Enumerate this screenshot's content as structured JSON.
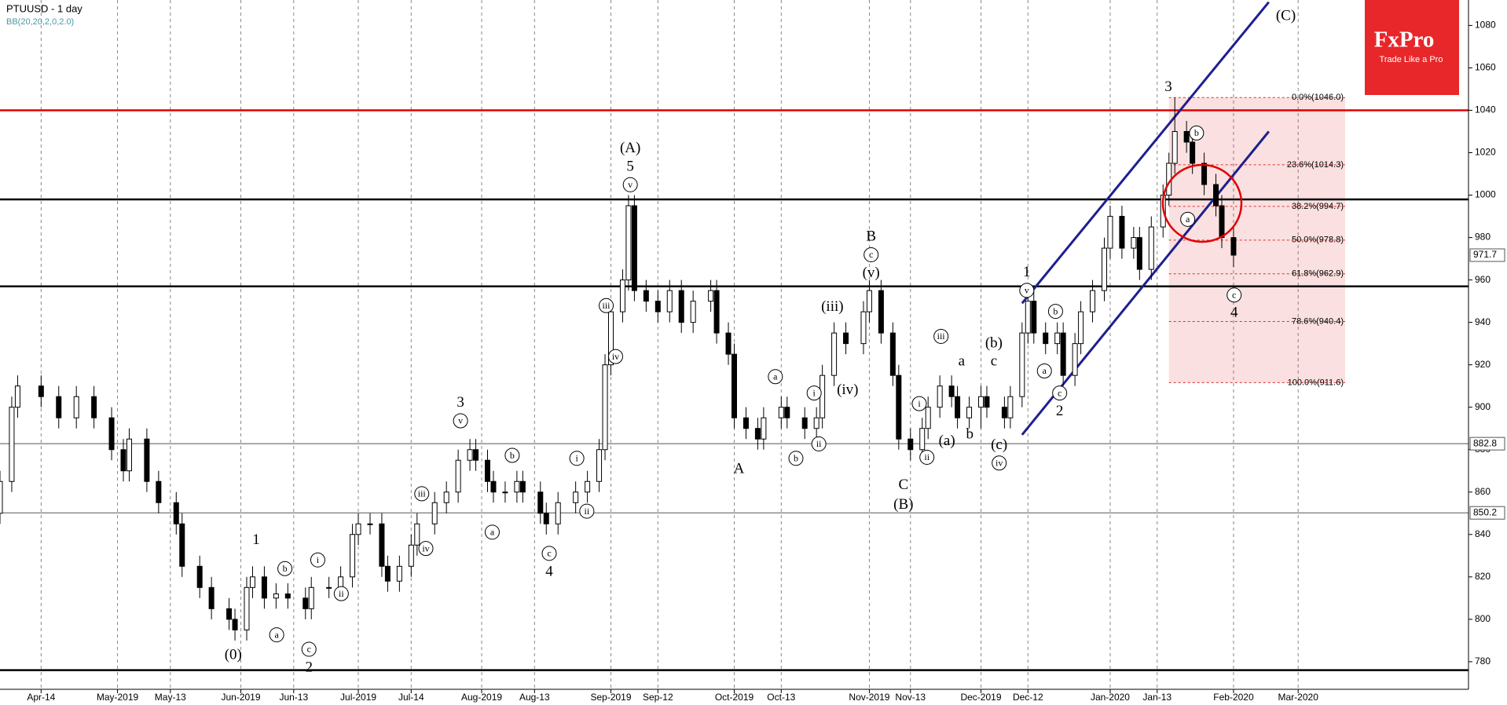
{
  "chart_data": {
    "type": "candlestick",
    "title": "PTUUSD - 1 day",
    "subtitle": "BB(20,20,2,0,2.0)",
    "brand": {
      "name": "FxPro",
      "tagline": "Trade Like a Pro"
    },
    "x": [
      0,
      2,
      3,
      7,
      10,
      13,
      16,
      19,
      21,
      22,
      25,
      27,
      30,
      31,
      34,
      36,
      39,
      40,
      42,
      43,
      45,
      47,
      49,
      52,
      53,
      56,
      58,
      60,
      61,
      63,
      65,
      66,
      68,
      70,
      71,
      74,
      76,
      78,
      80,
      81,
      83,
      84,
      86,
      88,
      89,
      92,
      93,
      95,
      98,
      100,
      102,
      103,
      104,
      106,
      107,
      108,
      110,
      112,
      114,
      116,
      118,
      121,
      122,
      124,
      125,
      127,
      129,
      130,
      133,
      134,
      137,
      139,
      140,
      142,
      144,
      147,
      148,
      150,
      152,
      153,
      155,
      157,
      158,
      160,
      162,
      163,
      165,
      167,
      168,
      171,
      172,
      174,
      175,
      176,
      178,
      180,
      181,
      183,
      184,
      186,
      188,
      189,
      191,
      193,
      194,
      196,
      198,
      199,
      200,
      202,
      203,
      205,
      207,
      208,
      210
    ],
    "open": [
      850,
      865,
      900,
      910,
      905,
      895,
      905,
      895,
      880,
      870,
      885,
      865,
      855,
      845,
      825,
      815,
      805,
      800,
      795,
      815,
      820,
      810,
      812,
      810,
      805,
      815,
      815,
      820,
      840,
      845,
      845,
      825,
      818,
      825,
      835,
      845,
      855,
      860,
      875,
      880,
      875,
      865,
      860,
      860,
      865,
      860,
      850,
      845,
      855,
      860,
      865,
      880,
      920,
      945,
      960,
      995,
      955,
      950,
      945,
      955,
      940,
      950,
      955,
      935,
      925,
      895,
      890,
      885,
      895,
      900,
      895,
      890,
      895,
      915,
      935,
      930,
      945,
      955,
      935,
      915,
      885,
      880,
      890,
      900,
      910,
      905,
      895,
      900,
      905,
      900,
      895,
      905,
      935,
      950,
      935,
      930,
      935,
      915,
      930,
      945,
      955,
      975,
      990,
      975,
      980,
      965,
      985,
      1000,
      1015,
      1030,
      1025,
      1015,
      1005,
      995,
      980
    ],
    "close": [
      865,
      900,
      910,
      905,
      895,
      905,
      895,
      880,
      870,
      885,
      865,
      855,
      845,
      825,
      815,
      805,
      800,
      795,
      815,
      820,
      810,
      812,
      810,
      805,
      815,
      815,
      820,
      840,
      845,
      845,
      825,
      818,
      825,
      835,
      845,
      855,
      860,
      875,
      880,
      875,
      865,
      860,
      860,
      865,
      860,
      850,
      845,
      855,
      860,
      865,
      880,
      920,
      945,
      960,
      995,
      955,
      950,
      945,
      955,
      940,
      950,
      955,
      935,
      925,
      895,
      890,
      885,
      895,
      900,
      895,
      890,
      895,
      915,
      935,
      930,
      945,
      955,
      935,
      915,
      885,
      880,
      890,
      900,
      910,
      905,
      895,
      900,
      905,
      900,
      895,
      905,
      935,
      950,
      935,
      930,
      935,
      915,
      930,
      945,
      955,
      975,
      990,
      975,
      980,
      965,
      985,
      1000,
      1015,
      1030,
      1025,
      1015,
      1005,
      995,
      980,
      971.7
    ],
    "high": [
      870,
      905,
      915,
      915,
      910,
      910,
      910,
      900,
      885,
      890,
      890,
      870,
      860,
      850,
      830,
      820,
      810,
      805,
      820,
      825,
      825,
      817,
      817,
      815,
      820,
      820,
      825,
      845,
      850,
      850,
      850,
      830,
      830,
      840,
      850,
      860,
      865,
      880,
      885,
      885,
      880,
      870,
      865,
      870,
      870,
      865,
      855,
      860,
      865,
      870,
      885,
      925,
      950,
      965,
      1000,
      1000,
      960,
      955,
      960,
      960,
      955,
      960,
      960,
      940,
      930,
      900,
      895,
      900,
      905,
      905,
      900,
      900,
      920,
      940,
      940,
      950,
      960,
      960,
      940,
      920,
      890,
      895,
      905,
      915,
      915,
      910,
      905,
      910,
      910,
      905,
      910,
      940,
      955,
      955,
      940,
      940,
      940,
      935,
      950,
      960,
      980,
      995,
      995,
      985,
      985,
      990,
      1005,
      1020,
      1046,
      1035,
      1030,
      1020,
      1010,
      1000,
      985
    ],
    "low": [
      845,
      860,
      895,
      900,
      890,
      890,
      890,
      875,
      865,
      865,
      860,
      850,
      840,
      820,
      810,
      800,
      795,
      790,
      790,
      810,
      805,
      805,
      805,
      800,
      800,
      810,
      810,
      815,
      835,
      840,
      820,
      813,
      813,
      820,
      830,
      840,
      850,
      855,
      870,
      870,
      860,
      855,
      855,
      855,
      855,
      845,
      840,
      840,
      850,
      855,
      860,
      875,
      915,
      940,
      955,
      950,
      945,
      940,
      940,
      935,
      935,
      945,
      930,
      920,
      890,
      885,
      880,
      880,
      890,
      890,
      885,
      885,
      890,
      910,
      925,
      925,
      940,
      930,
      910,
      880,
      875,
      875,
      885,
      895,
      900,
      890,
      890,
      890,
      895,
      890,
      890,
      900,
      930,
      930,
      925,
      925,
      910,
      910,
      925,
      940,
      950,
      970,
      970,
      970,
      960,
      960,
      980,
      995,
      1010,
      1020,
      1010,
      1000,
      990,
      975,
      966
    ],
    "up_color": "#ffffff",
    "down_color": "#000000",
    "xlim": [
      0,
      250
    ],
    "ylim": [
      767,
      1092
    ],
    "yticks": [
      780,
      800,
      820,
      840,
      860,
      880,
      900,
      920,
      940,
      960,
      980,
      1000,
      1020,
      1040,
      1060,
      1080
    ],
    "xticks": [
      {
        "value": 7,
        "label": "Apr-14"
      },
      {
        "value": 20,
        "label": "May-2019"
      },
      {
        "value": 29,
        "label": "May-13"
      },
      {
        "value": 41,
        "label": "Jun-2019"
      },
      {
        "value": 50,
        "label": "Jun-13"
      },
      {
        "value": 61,
        "label": "Jul-2019"
      },
      {
        "value": 70,
        "label": "Jul-14"
      },
      {
        "value": 82,
        "label": "Aug-2019"
      },
      {
        "value": 91,
        "label": "Aug-13"
      },
      {
        "value": 104,
        "label": "Sep-2019"
      },
      {
        "value": 112,
        "label": "Sep-12"
      },
      {
        "value": 125,
        "label": "Oct-2019"
      },
      {
        "value": 133,
        "label": "Oct-13"
      },
      {
        "value": 148,
        "label": "Nov-2019"
      },
      {
        "value": 155,
        "label": "Nov-13"
      },
      {
        "value": 167,
        "label": "Dec-2019"
      },
      {
        "value": 175,
        "label": "Dec-12"
      },
      {
        "value": 189,
        "label": "Jan-2020"
      },
      {
        "value": 197,
        "label": "Jan-13"
      },
      {
        "value": 210,
        "label": "Feb-2020"
      },
      {
        "value": 221,
        "label": "Mar-2020"
      }
    ],
    "hlines": [
      {
        "value": 1040,
        "color": "#e00000"
      },
      {
        "value": 998,
        "color": "#000000"
      },
      {
        "value": 957,
        "color": "#000000"
      },
      {
        "value": 776,
        "color": "#000000"
      },
      {
        "value": 882.8,
        "color": "#555555"
      },
      {
        "value": 850.2,
        "color": "#555555"
      }
    ],
    "price_labels": [
      882.8,
      850.2,
      971.7
    ],
    "fib": {
      "x": [
        199,
        229
      ],
      "color": "#e03030",
      "levels": [
        {
          "value": 1046.0,
          "label": "0.0%(1046.0)"
        },
        {
          "value": 1014.3,
          "label": "23.6%(1014.3)"
        },
        {
          "value": 994.7,
          "label": "38.2%(994.7)"
        },
        {
          "value": 978.8,
          "label": "50.0%(978.8)"
        },
        {
          "value": 962.9,
          "label": "61.8%(962.9)"
        },
        {
          "value": 940.4,
          "label": "78.6%(940.4)"
        },
        {
          "value": 911.6,
          "label": "100.0%(911.6)"
        }
      ]
    },
    "channels": [
      {
        "x": [
          174,
          216
        ],
        "y": [
          949,
          1091
        ],
        "color": "#1f1f8f"
      },
      {
        "x": [
          174,
          216
        ],
        "y": [
          887,
          1030
        ],
        "color": "#1f1f8f"
      }
    ],
    "annotations": [
      {
        "text": "(A)",
        "x": 107.3,
        "y": 1022.1,
        "circled": false
      },
      {
        "text": "5",
        "x": 107.3,
        "y": 1013.5,
        "circled": false
      },
      {
        "text": "v",
        "x": 107.3,
        "y": 1004.9,
        "circled": true
      },
      {
        "text": "3",
        "x": 198.9,
        "y": 1051.0,
        "circled": false
      },
      {
        "text": "(C)",
        "x": 218.9,
        "y": 1084.5,
        "circled": false
      },
      {
        "text": "B",
        "x": 148.3,
        "y": 980.5,
        "circled": false
      },
      {
        "text": "c",
        "x": 148.3,
        "y": 971.9,
        "circled": true
      },
      {
        "text": "(v)",
        "x": 148.3,
        "y": 963.3,
        "circled": false
      },
      {
        "text": "1",
        "x": 174.8,
        "y": 963.7,
        "circled": false
      },
      {
        "text": "v",
        "x": 174.8,
        "y": 955.1,
        "circled": true
      },
      {
        "text": "2",
        "x": 180.4,
        "y": 898.1,
        "circled": false
      },
      {
        "text": "c",
        "x": 180.4,
        "y": 906.7,
        "circled": true
      },
      {
        "text": "4",
        "x": 210.1,
        "y": 944.7,
        "circled": false
      },
      {
        "text": "c",
        "x": 210.1,
        "y": 952.9,
        "circled": true
      },
      {
        "text": "A",
        "x": 125.8,
        "y": 870.9,
        "circled": false
      },
      {
        "text": "C",
        "x": 153.8,
        "y": 863.3,
        "circled": false
      },
      {
        "text": "(B)",
        "x": 153.8,
        "y": 854.2,
        "circled": false
      },
      {
        "text": "3",
        "x": 78.4,
        "y": 902.2,
        "circled": false
      },
      {
        "text": "v",
        "x": 78.4,
        "y": 893.6,
        "circled": true
      },
      {
        "text": "4",
        "x": 93.5,
        "y": 822.5,
        "circled": false
      },
      {
        "text": "c",
        "x": 93.5,
        "y": 831.1,
        "circled": true
      },
      {
        "text": "1",
        "x": 43.6,
        "y": 837.5,
        "circled": false
      },
      {
        "text": "2",
        "x": 52.6,
        "y": 777.3,
        "circled": false
      },
      {
        "text": "c",
        "x": 52.6,
        "y": 785.9,
        "circled": true
      },
      {
        "text": "(0)",
        "x": 39.7,
        "y": 783.2,
        "circled": false
      },
      {
        "text": "a",
        "x": 47.1,
        "y": 792.7,
        "circled": true
      },
      {
        "text": "b",
        "x": 48.5,
        "y": 823.9,
        "circled": true
      },
      {
        "text": "i",
        "x": 54.1,
        "y": 828.0,
        "circled": true
      },
      {
        "text": "ii",
        "x": 58.1,
        "y": 812.1,
        "circled": true
      },
      {
        "text": "iii",
        "x": 71.8,
        "y": 859.2,
        "circled": true
      },
      {
        "text": "iv",
        "x": 72.5,
        "y": 833.4,
        "circled": true
      },
      {
        "text": "a",
        "x": 83.8,
        "y": 841.1,
        "circled": true
      },
      {
        "text": "b",
        "x": 87.2,
        "y": 877.3,
        "circled": true
      },
      {
        "text": "i",
        "x": 98.2,
        "y": 875.9,
        "circled": true
      },
      {
        "text": "ii",
        "x": 99.9,
        "y": 851.0,
        "circled": true
      },
      {
        "text": "iii",
        "x": 103.2,
        "y": 947.9,
        "circled": true
      },
      {
        "text": "iv",
        "x": 104.8,
        "y": 923.9,
        "circled": true
      },
      {
        "text": "a",
        "x": 132.0,
        "y": 914.4,
        "circled": true
      },
      {
        "text": "b",
        "x": 135.5,
        "y": 875.9,
        "circled": true
      },
      {
        "text": "i",
        "x": 138.6,
        "y": 906.7,
        "circled": true
      },
      {
        "text": "ii",
        "x": 139.4,
        "y": 882.7,
        "circled": true
      },
      {
        "text": "(iii)",
        "x": 141.7,
        "y": 947.4,
        "circled": false
      },
      {
        "text": "(iv)",
        "x": 144.3,
        "y": 908.1,
        "circled": false
      },
      {
        "text": "i",
        "x": 156.5,
        "y": 901.7,
        "circled": true
      },
      {
        "text": "ii",
        "x": 157.8,
        "y": 876.4,
        "circled": true
      },
      {
        "text": "iii",
        "x": 160.2,
        "y": 933.4,
        "circled": true
      },
      {
        "text": "(a)",
        "x": 161.2,
        "y": 884.1,
        "circled": false
      },
      {
        "text": "a",
        "x": 163.7,
        "y": 921.6,
        "circled": false
      },
      {
        "text": "b",
        "x": 165.1,
        "y": 887.2,
        "circled": false
      },
      {
        "text": "(b)",
        "x": 169.2,
        "y": 930.2,
        "circled": false
      },
      {
        "text": "c",
        "x": 169.2,
        "y": 921.6,
        "circled": false
      },
      {
        "text": "(c)",
        "x": 170.1,
        "y": 882.3,
        "circled": false
      },
      {
        "text": "iv",
        "x": 170.1,
        "y": 873.7,
        "circled": true
      },
      {
        "text": "a",
        "x": 177.8,
        "y": 917.1,
        "circled": true
      },
      {
        "text": "b",
        "x": 179.7,
        "y": 945.2,
        "circled": true
      },
      {
        "text": "a",
        "x": 202.2,
        "y": 988.6,
        "circled": true
      },
      {
        "text": "b",
        "x": 203.7,
        "y": 1029.3,
        "circled": true
      }
    ]
  }
}
